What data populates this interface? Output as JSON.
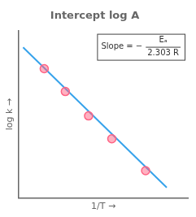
{
  "chart_data": {
    "type": "scatter",
    "title": "Intercept log A",
    "x_label": "1/T →",
    "y_label": "log k →",
    "xlim": [
      0.0,
      0.8
    ],
    "ylim": [
      0.0,
      1.1
    ],
    "tick_labels": false,
    "grid": false,
    "series": [
      {
        "type": "line",
        "marker": "none",
        "x": [
          0.02,
          0.7
        ],
        "values": [
          0.99,
          0.07
        ]
      },
      {
        "type": "scatter",
        "marker": "circle",
        "x": [
          0.12,
          0.22,
          0.33,
          0.44,
          0.6
        ],
        "values": [
          0.85,
          0.7,
          0.54,
          0.39,
          0.18
        ]
      }
    ],
    "annotation": {
      "text": "Slope = −",
      "numerator": "Eₐ",
      "denominator": "2.303 R"
    }
  }
}
